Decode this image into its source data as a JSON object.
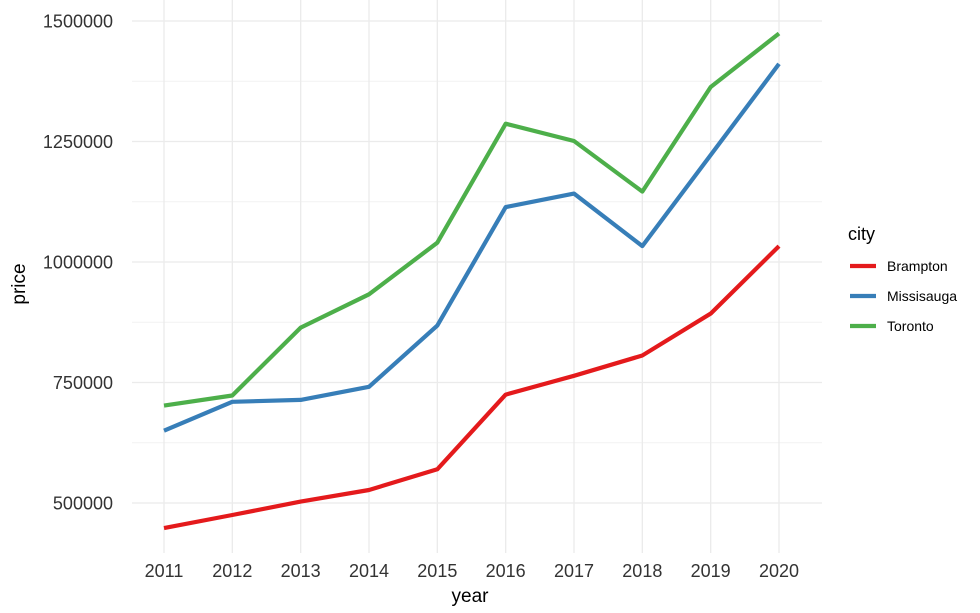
{
  "chart_data": {
    "type": "line",
    "xlabel": "year",
    "ylabel": "price",
    "x": [
      2011,
      2012,
      2013,
      2014,
      2015,
      2016,
      2017,
      2018,
      2019,
      2020
    ],
    "xticks": [
      "2011",
      "2012",
      "2013",
      "2014",
      "2015",
      "2016",
      "2017",
      "2018",
      "2019",
      "2020"
    ],
    "yticks": [
      {
        "value": 500000,
        "label": "500000"
      },
      {
        "value": 750000,
        "label": "750000"
      },
      {
        "value": 1000000,
        "label": "1000000"
      },
      {
        "value": 1250000,
        "label": "1250000"
      },
      {
        "value": 1500000,
        "label": "1500000"
      }
    ],
    "ylim": [
      400000,
      1500000
    ],
    "grid": true,
    "legend": {
      "title": "city",
      "position": "right"
    },
    "series": [
      {
        "name": "Brampton",
        "color": "#e41a1c",
        "values": [
          448000,
          475000,
          503000,
          527000,
          570000,
          725000,
          764000,
          806000,
          893000,
          1033000
        ]
      },
      {
        "name": "Missisauga",
        "color": "#377eb8",
        "values": [
          650000,
          710000,
          714000,
          741000,
          868000,
          1114000,
          1142000,
          1033000,
          1222000,
          1411000
        ]
      },
      {
        "name": "Toronto",
        "color": "#4daf4a",
        "values": [
          702000,
          723000,
          864000,
          933000,
          1040000,
          1287000,
          1251000,
          1146000,
          1363000,
          1474000
        ]
      }
    ]
  }
}
